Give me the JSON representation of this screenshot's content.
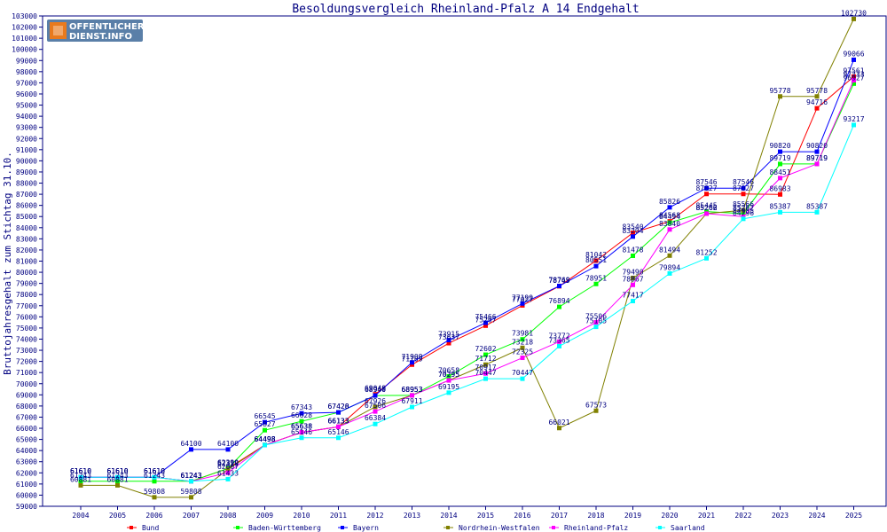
{
  "logo": {
    "line1": "OFFENTLICHER",
    "line2": "DIENST.INFO"
  },
  "chart_data": {
    "type": "line",
    "title": "Besoldungsvergleich Rheinland-Pfalz A 14 Endgehalt",
    "ylabel": "Bruttojahresgehalt zum Stichtag 31.10.",
    "xlabel": "",
    "ylim": [
      59000,
      103000
    ],
    "ytick_step": 1000,
    "grid": false,
    "legend_position": "bottom",
    "categories": [
      "2004",
      "2005",
      "2006",
      "2007",
      "2008",
      "2009",
      "2010",
      "2011",
      "2012",
      "2013",
      "2014",
      "2015",
      "2016",
      "2017",
      "2018",
      "2019",
      "2020",
      "2021",
      "2022",
      "2023",
      "2024",
      "2025"
    ],
    "series": [
      {
        "name": "Bund",
        "color": "#ff0000",
        "values": [
          61610,
          61610,
          61610,
          61243,
          62399,
          64498,
          65638,
          66133,
          69049,
          71709,
          73637,
          75207,
          77027,
          78745,
          81042,
          83540,
          84568,
          87027,
          87027,
          86983,
          94716,
          97561
        ]
      },
      {
        "name": "Baden-Württemberg",
        "color": "#00ff00",
        "values": [
          61243,
          61243,
          61243,
          61243,
          62399,
          65827,
          66628,
          67420,
          68940,
          68953,
          70658,
          72602,
          73981,
          76894,
          78951,
          81478,
          84454,
          85445,
          85262,
          89719,
          89719,
          96927
        ]
      },
      {
        "name": "Bayern",
        "color": "#0000ff",
        "values": [
          61610,
          61610,
          61610,
          64100,
          64100,
          66545,
          67343,
          67428,
          68940,
          71909,
          73915,
          75466,
          77199,
          78769,
          80551,
          83204,
          85826,
          87546,
          87546,
          90820,
          90820,
          99066
        ]
      },
      {
        "name": "Nordrhein-Westfalen",
        "color": "#808000",
        "values": [
          60881,
          60881,
          59808,
          59808,
          62310,
          64498,
          65638,
          66133,
          67926,
          68953,
          70295,
          71712,
          73218,
          66021,
          67573,
          79490,
          81494,
          85266,
          85566,
          95778,
          95778,
          102730
        ]
      },
      {
        "name": "Rheinland-Pfalz",
        "color": "#ff00ff",
        "values": [
          61610,
          61610,
          61610,
          61243,
          62007,
          64498,
          65638,
          66133,
          67506,
          68953,
          70295,
          70917,
          72325,
          73772,
          75506,
          78867,
          83840,
          85262,
          84985,
          88451,
          89719,
          97233
        ]
      },
      {
        "name": "Saarland",
        "color": "#00ffff",
        "values": [
          61610,
          61610,
          61610,
          61243,
          61433,
          64498,
          65146,
          65146,
          66384,
          67911,
          69195,
          70447,
          70447,
          73365,
          75105,
          77417,
          79894,
          81252,
          84796,
          85387,
          85387,
          93217
        ]
      }
    ]
  }
}
